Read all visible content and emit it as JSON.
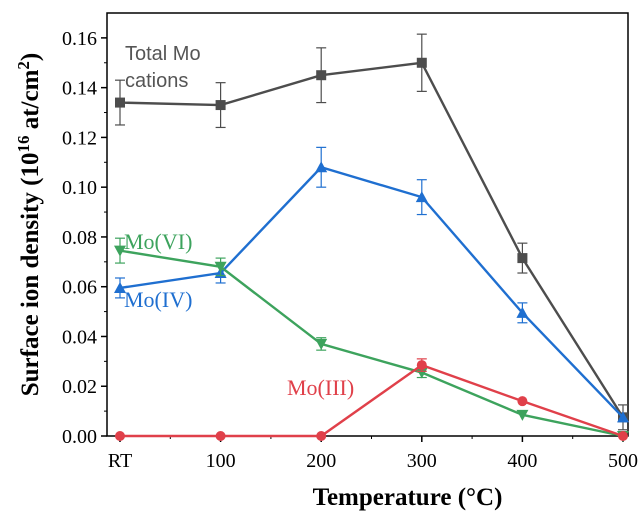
{
  "chart_data": {
    "type": "line",
    "xlabel": "Temperature (°C)",
    "ylabel_main": "Surface ion density (10",
    "ylabel_sup": "16",
    "ylabel_tail": " at/cm",
    "ylabel_sup2": "2",
    "ylabel_end": ")",
    "categories": [
      "RT",
      "100",
      "200",
      "300",
      "400",
      "500"
    ],
    "ylim": [
      0,
      0.17
    ],
    "yticks": [
      "0.00",
      "0.02",
      "0.04",
      "0.06",
      "0.08",
      "0.10",
      "0.12",
      "0.14",
      "0.16"
    ],
    "grid": false,
    "annotations": [
      {
        "id": "total",
        "lines": [
          "Total Mo",
          "cations"
        ]
      },
      {
        "id": "mo6",
        "lines": [
          "Mo(VI)"
        ]
      },
      {
        "id": "mo4",
        "lines": [
          "Mo(IV)"
        ]
      },
      {
        "id": "mo3",
        "lines": [
          "Mo(III)"
        ]
      }
    ],
    "series": [
      {
        "id": "total",
        "color": "#4d4d4d",
        "marker": "square",
        "values": [
          0.134,
          0.133,
          0.145,
          0.15,
          0.0715,
          0.0075
        ],
        "errors": [
          0.009,
          0.009,
          0.011,
          0.0115,
          0.006,
          0.005
        ]
      },
      {
        "id": "mo4",
        "color": "#1f6fd0",
        "marker": "triangle-up",
        "values": [
          0.0595,
          0.0655,
          0.108,
          0.096,
          0.0495,
          0.0075
        ],
        "errors": [
          0.004,
          0.004,
          0.008,
          0.007,
          0.004,
          0
        ]
      },
      {
        "id": "mo6",
        "color": "#3da35d",
        "marker": "triangle-down",
        "values": [
          0.0745,
          0.068,
          0.037,
          0.0255,
          0.0085,
          0
        ],
        "errors": [
          0.005,
          0.0035,
          0.0025,
          0.002,
          0,
          0
        ]
      },
      {
        "id": "mo3",
        "color": "#e0404a",
        "marker": "circle",
        "values": [
          0,
          0,
          0,
          0.0285,
          0.014,
          0
        ],
        "errors": [
          0,
          0,
          0,
          0.0025,
          0,
          0
        ]
      }
    ]
  }
}
